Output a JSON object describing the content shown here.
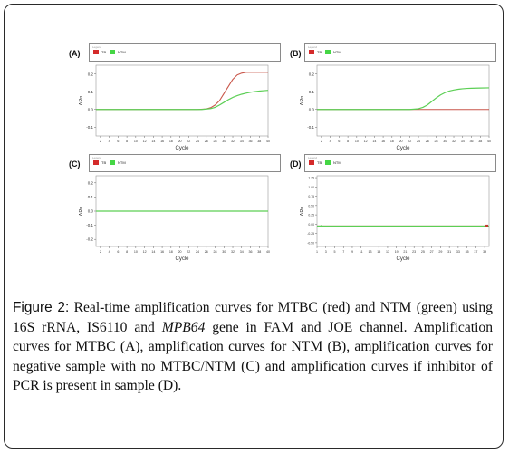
{
  "colors": {
    "mtbc": "#c0392b",
    "ntm": "#5ccf55",
    "frame": "#2a2a2a"
  },
  "panels": [
    {
      "label": "(A)",
      "legend_header": "Legend",
      "legend_items": [
        {
          "name": "TB",
          "color": "#d42a2a"
        },
        {
          "name": "NTM",
          "color": "#45d645"
        }
      ],
      "ylabel": "ΔRn",
      "xlabel": "Cycle",
      "yticks": [
        "0.2",
        "0.1",
        "0.0",
        "-0.1"
      ],
      "xticks": [
        "2",
        "4",
        "6",
        "8",
        "10",
        "12",
        "14",
        "16",
        "18",
        "20",
        "22",
        "24",
        "26",
        "28",
        "30",
        "32",
        "34",
        "36",
        "38",
        "40"
      ]
    },
    {
      "label": "(B)",
      "legend_header": "Legend",
      "legend_items": [
        {
          "name": "TB",
          "color": "#d42a2a"
        },
        {
          "name": "NTM",
          "color": "#45d645"
        }
      ],
      "ylabel": "ΔRn",
      "xlabel": "Cycle",
      "yticks": [
        "0.2",
        "0.1",
        "0.0",
        "-0.1"
      ],
      "xticks": [
        "2",
        "4",
        "6",
        "8",
        "10",
        "12",
        "14",
        "16",
        "18",
        "20",
        "22",
        "24",
        "26",
        "28",
        "30",
        "32",
        "34",
        "36",
        "38",
        "40"
      ]
    },
    {
      "label": "(C)",
      "legend_header": "Legend",
      "legend_items": [
        {
          "name": "TB",
          "color": "#d42a2a"
        },
        {
          "name": "NTM",
          "color": "#45d645"
        }
      ],
      "ylabel": "ΔRn",
      "xlabel": "Cycle",
      "yticks": [
        "0.2",
        "0.1",
        "0.0",
        "-0.1",
        "-0.2"
      ],
      "xticks": [
        "2",
        "4",
        "6",
        "8",
        "10",
        "12",
        "14",
        "16",
        "18",
        "20",
        "22",
        "24",
        "26",
        "28",
        "30",
        "32",
        "34",
        "36",
        "38",
        "40"
      ]
    },
    {
      "label": "(D)",
      "legend_header": "Legend",
      "legend_items": [
        {
          "name": "TB",
          "color": "#d42a2a"
        },
        {
          "name": "NTM",
          "color": "#45d645"
        }
      ],
      "ylabel": "ΔRn",
      "xlabel": "Cycle",
      "yticks": [
        "1.25",
        "1.00",
        "0.75",
        "0.50",
        "0.25",
        "0.00",
        "-0.25",
        "-0.50"
      ],
      "xticks": [
        "1",
        "3",
        "5",
        "7",
        "9",
        "11",
        "13",
        "15",
        "17",
        "19",
        "21",
        "23",
        "25",
        "27",
        "29",
        "31",
        "33",
        "35",
        "37",
        "39"
      ]
    }
  ],
  "caption": {
    "figure_label": "Figure 2:",
    "text_before_gene": " Real-time amplification curves for MTBC (red) and NTM (green) using 16S rRNA, IS6110 and ",
    "gene": "MPB64",
    "text_after_gene": " gene in FAM and JOE channel. Amplification curves for MTBC (A), amplification curves for NTM (B), amplification curves for negative sample with no MTBC/NTM (C) and amplification curves if inhibitor of PCR is present in sample (D)."
  },
  "chart_data": [
    {
      "type": "line",
      "title": "(A)",
      "xlabel": "Cycle",
      "ylabel": "ΔRn",
      "xlim": [
        1,
        40
      ],
      "ylim": [
        -0.15,
        0.25
      ],
      "series": [
        {
          "name": "TB",
          "color": "#c0392b",
          "x": [
            1,
            20,
            24,
            26,
            27,
            28,
            29,
            30,
            31,
            32,
            33,
            34,
            35,
            36,
            37,
            38,
            39,
            40
          ],
          "y": [
            0,
            0,
            0,
            0.003,
            0.01,
            0.025,
            0.05,
            0.09,
            0.13,
            0.17,
            0.195,
            0.205,
            0.21,
            0.21,
            0.21,
            0.21,
            0.21,
            0.21
          ]
        },
        {
          "name": "NTM",
          "color": "#5ccf55",
          "x": [
            1,
            25,
            27,
            28,
            29,
            30,
            31,
            32,
            33,
            34,
            35,
            36,
            37,
            38,
            39,
            40
          ],
          "y": [
            0,
            0,
            0.005,
            0.012,
            0.025,
            0.04,
            0.055,
            0.068,
            0.078,
            0.086,
            0.092,
            0.097,
            0.101,
            0.104,
            0.106,
            0.108
          ]
        }
      ]
    },
    {
      "type": "line",
      "title": "(B)",
      "xlabel": "Cycle",
      "ylabel": "ΔRn",
      "xlim": [
        1,
        40
      ],
      "ylim": [
        -0.15,
        0.25
      ],
      "series": [
        {
          "name": "TB",
          "color": "#c0392b",
          "x": [
            1,
            40
          ],
          "y": [
            0,
            0
          ]
        },
        {
          "name": "NTM",
          "color": "#5ccf55",
          "x": [
            1,
            22,
            24,
            25,
            26,
            27,
            28,
            29,
            30,
            31,
            32,
            33,
            34,
            35,
            36,
            38,
            40
          ],
          "y": [
            0,
            0,
            0.004,
            0.012,
            0.025,
            0.045,
            0.065,
            0.082,
            0.095,
            0.104,
            0.11,
            0.114,
            0.117,
            0.119,
            0.12,
            0.121,
            0.122
          ]
        }
      ]
    },
    {
      "type": "line",
      "title": "(C)",
      "xlabel": "Cycle",
      "ylabel": "ΔRn",
      "xlim": [
        1,
        40
      ],
      "ylim": [
        -0.25,
        0.25
      ],
      "series": [
        {
          "name": "TB",
          "color": "#c0392b",
          "x": [
            1,
            40
          ],
          "y": [
            0,
            0
          ]
        },
        {
          "name": "NTM",
          "color": "#5ccf55",
          "x": [
            1,
            40
          ],
          "y": [
            0,
            0
          ]
        }
      ]
    },
    {
      "type": "line",
      "title": "(D)",
      "xlabel": "Cycle",
      "ylabel": "ΔRn",
      "xlim": [
        1,
        40
      ],
      "ylim": [
        -0.6,
        1.3
      ],
      "series": [
        {
          "name": "TB",
          "color": "#c0392b",
          "x": [
            1,
            40
          ],
          "y": [
            -0.05,
            -0.05
          ]
        },
        {
          "name": "NTM",
          "color": "#5ccf55",
          "x": [
            1,
            40
          ],
          "y": [
            -0.05,
            -0.05
          ]
        }
      ]
    }
  ]
}
